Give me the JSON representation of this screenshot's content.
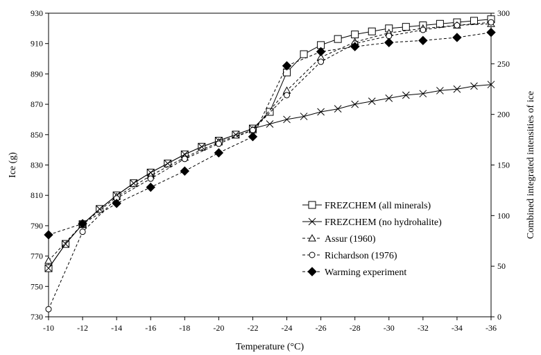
{
  "chart_data": {
    "type": "line",
    "xlabel": "Temperature (°C)",
    "ylabel": "Ice (g)",
    "y2label": "Combined integrated intensities of ice",
    "x_reversed": true,
    "xlim": [
      -10,
      -36
    ],
    "ylim": [
      730,
      930
    ],
    "y2lim": [
      0,
      300
    ],
    "x_ticks": [
      -10,
      -12,
      -14,
      -16,
      -18,
      -20,
      -22,
      -24,
      -26,
      -28,
      -30,
      -32,
      -34,
      -36
    ],
    "x_tick_labels": [
      "-10",
      "-12",
      "-14",
      "-16",
      "-18",
      "-20",
      "-22",
      "-24",
      "-26",
      "-28",
      "-30",
      "-32",
      "-34",
      "-36"
    ],
    "y_ticks": [
      730,
      750,
      770,
      790,
      810,
      830,
      850,
      870,
      890,
      910,
      930
    ],
    "y_tick_labels": [
      "730",
      "750",
      "770",
      "790",
      "810",
      "830",
      "850",
      "870",
      "890",
      "910",
      "930"
    ],
    "y2_ticks": [
      0,
      50,
      100,
      150,
      200,
      250,
      300
    ],
    "y2_tick_labels": [
      "0",
      "50",
      "100",
      "150",
      "200",
      "250",
      "300"
    ],
    "grid": false,
    "legend_position": "bottom-right",
    "series": [
      {
        "name": "FREZCHEM (all minerals)",
        "axis": "left",
        "marker": "square",
        "line": "solid",
        "x": [
          -10,
          -11,
          -12,
          -13,
          -14,
          -15,
          -16,
          -17,
          -18,
          -19,
          -20,
          -21,
          -22,
          -23,
          -24,
          -25,
          -26,
          -27,
          -28,
          -29,
          -30,
          -31,
          -32,
          -33,
          -34,
          -35,
          -36
        ],
        "y": [
          762,
          778,
          791,
          801,
          810,
          818,
          825,
          831,
          837,
          842,
          846,
          850,
          854,
          865,
          891,
          903,
          909,
          913,
          916,
          918,
          920,
          921,
          922,
          923,
          924,
          925,
          926
        ]
      },
      {
        "name": "FREZCHEM (no hydrohalite)",
        "axis": "left",
        "marker": "x",
        "line": "solid",
        "x": [
          -10,
          -11,
          -12,
          -13,
          -14,
          -15,
          -16,
          -17,
          -18,
          -19,
          -20,
          -21,
          -22,
          -23,
          -24,
          -25,
          -26,
          -27,
          -28,
          -29,
          -30,
          -31,
          -32,
          -33,
          -34,
          -35,
          -36
        ],
        "y": [
          762,
          778,
          791,
          801,
          810,
          818,
          825,
          831,
          837,
          842,
          846,
          850,
          854,
          857,
          860,
          862,
          865,
          867,
          870,
          872,
          874,
          876,
          877,
          879,
          880,
          882,
          883
        ]
      },
      {
        "name": "Assur (1960)",
        "axis": "left",
        "marker": "triangle",
        "line": "dashed",
        "x": [
          -10,
          -12,
          -14,
          -16,
          -18,
          -20,
          -22,
          -24,
          -26,
          -28,
          -30,
          -32,
          -34,
          -36
        ],
        "y": [
          767,
          791,
          809,
          823,
          835,
          845,
          853,
          879,
          901,
          911,
          917,
          920,
          922,
          923
        ]
      },
      {
        "name": "Richardson (1976)",
        "axis": "left",
        "marker": "circle",
        "line": "dashed",
        "x": [
          -10,
          -12,
          -14,
          -16,
          -18,
          -20,
          -22,
          -24,
          -26,
          -28,
          -30,
          -32,
          -34,
          -36
        ],
        "y": [
          735,
          786,
          808,
          821,
          834,
          844,
          853,
          876,
          898,
          910,
          915,
          919,
          922,
          924
        ]
      },
      {
        "name": "Warming experiment",
        "axis": "right",
        "marker": "diamond",
        "line": "dashed",
        "x": [
          -10,
          -12,
          -14,
          -16,
          -18,
          -20,
          -22,
          -24,
          -26,
          -28,
          -30,
          -32,
          -34,
          -36
        ],
        "y": [
          81,
          92,
          112,
          128,
          144,
          162,
          178,
          248,
          262,
          267,
          271,
          273,
          276,
          281
        ]
      }
    ]
  }
}
